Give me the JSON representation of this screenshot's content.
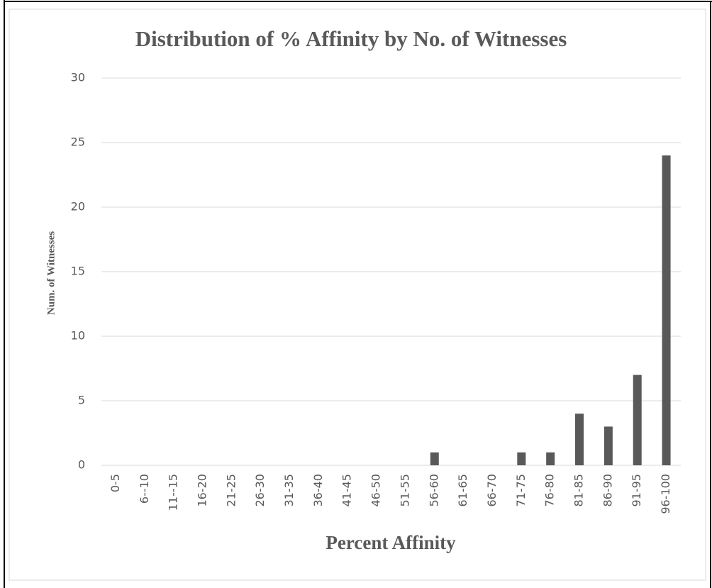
{
  "chart_data": {
    "type": "bar",
    "title": "Distribution of % Affinity by No. of Witnesses",
    "x_label": "Percent Affinity",
    "y_label": "Num. of Witnesses",
    "categories": [
      "0-5",
      "6--10",
      "11--15",
      "16-20",
      "21-25",
      "26-30",
      "31-35",
      "36-40",
      "41-45",
      "46-50",
      "51-55",
      "56-60",
      "61-65",
      "66-70",
      "71-75",
      "76-80",
      "81-85",
      "86-90",
      "91-95",
      "96-100"
    ],
    "values": [
      0,
      0,
      0,
      0,
      0,
      0,
      0,
      0,
      0,
      0,
      0,
      1,
      0,
      0,
      1,
      1,
      4,
      3,
      7,
      24
    ],
    "color": "#595959",
    "ylim": [
      0,
      30
    ],
    "yticks": [
      0,
      5,
      10,
      15,
      20,
      25,
      30
    ],
    "grid": true
  }
}
